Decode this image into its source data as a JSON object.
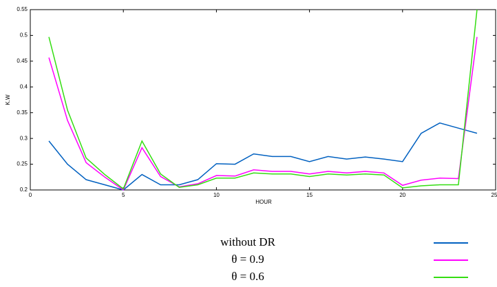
{
  "chart_data": {
    "type": "line",
    "xlabel": "HOUR",
    "ylabel": "K.W",
    "x": [
      1,
      2,
      3,
      4,
      5,
      6,
      7,
      8,
      9,
      10,
      11,
      12,
      13,
      14,
      15,
      16,
      17,
      18,
      19,
      20,
      21,
      22,
      23,
      24
    ],
    "series": [
      {
        "name": "without DR",
        "color": "#0060c0",
        "values": [
          0.295,
          0.25,
          0.22,
          0.21,
          0.2,
          0.23,
          0.21,
          0.21,
          0.22,
          0.251,
          0.25,
          0.27,
          0.265,
          0.265,
          0.255,
          0.265,
          0.26,
          0.264,
          0.26,
          0.255,
          0.31,
          0.33,
          0.32,
          0.31
        ]
      },
      {
        "name": "θ = 0.9",
        "color": "#ff00ff",
        "values": [
          0.457,
          0.335,
          0.253,
          0.225,
          0.2,
          0.282,
          0.226,
          0.206,
          0.212,
          0.228,
          0.227,
          0.239,
          0.236,
          0.236,
          0.231,
          0.236,
          0.233,
          0.236,
          0.233,
          0.209,
          0.219,
          0.223,
          0.222,
          0.497
        ]
      },
      {
        "name": "θ = 0.6",
        "color": "#33dd11",
        "values": [
          0.497,
          0.355,
          0.262,
          0.23,
          0.202,
          0.295,
          0.231,
          0.205,
          0.21,
          0.223,
          0.223,
          0.233,
          0.231,
          0.231,
          0.226,
          0.231,
          0.229,
          0.231,
          0.229,
          0.204,
          0.208,
          0.21,
          0.21,
          0.55
        ]
      }
    ],
    "xlim": [
      0,
      25
    ],
    "xticks": [
      0,
      5,
      10,
      15,
      20,
      25
    ],
    "ylim": [
      0.2,
      0.55
    ],
    "yticks": [
      0.2,
      0.25,
      0.3,
      0.35,
      0.4,
      0.45,
      0.5,
      0.55
    ],
    "grid": false
  }
}
